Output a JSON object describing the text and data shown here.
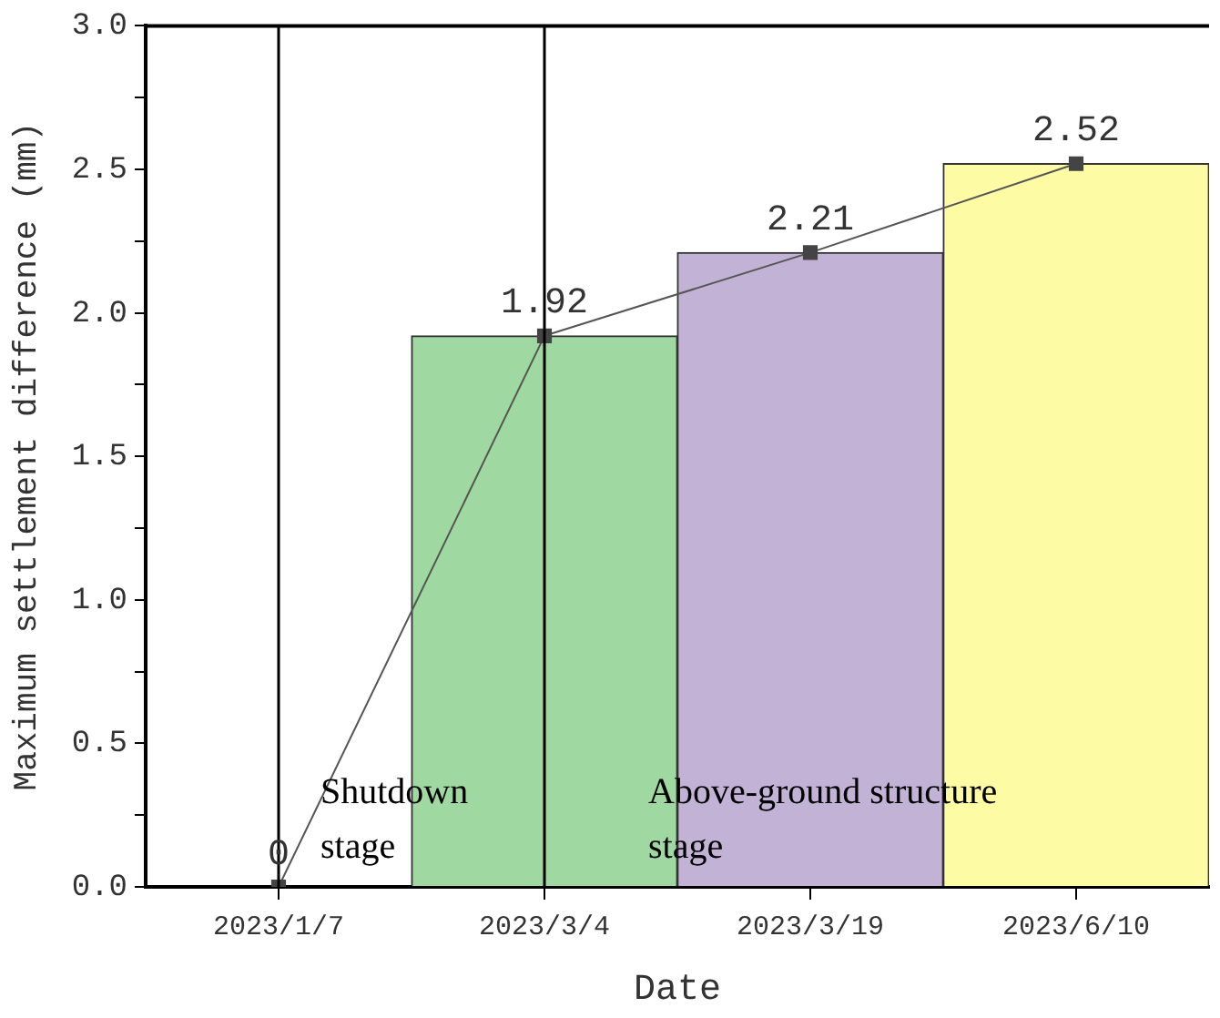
{
  "chart_data": {
    "type": "bar",
    "xlabel": "Date",
    "ylabel": "Maximum settlement difference (mm)",
    "categories": [
      "2023/1/7",
      "2023/3/4",
      "2023/3/19",
      "2023/6/10"
    ],
    "series": [
      {
        "type": "bar",
        "colors": [
          "#9fd8a0",
          "#9fd8a0",
          "#c2b2d6",
          "#fdfca5"
        ],
        "values": [
          0,
          1.92,
          2.21,
          2.52
        ]
      },
      {
        "type": "line",
        "color": "#555555",
        "marker": "square",
        "values": [
          0,
          1.92,
          2.21,
          2.52
        ],
        "value_labels": [
          "0",
          "1.92",
          "2.21",
          "2.52"
        ]
      }
    ],
    "ylim": [
      0,
      3
    ],
    "yticks": [
      {
        "value": 0,
        "label": "0.0"
      },
      {
        "value": 0.25,
        "label": null
      },
      {
        "value": 0.5,
        "label": "0.5"
      },
      {
        "value": 0.75,
        "label": null
      },
      {
        "value": 1,
        "label": "1.0"
      },
      {
        "value": 1.25,
        "label": null
      },
      {
        "value": 1.5,
        "label": "1.5"
      },
      {
        "value": 1.75,
        "label": null
      },
      {
        "value": 2,
        "label": "2.0"
      },
      {
        "value": 2.25,
        "label": null
      },
      {
        "value": 2.5,
        "label": "2.5"
      },
      {
        "value": 2.75,
        "label": null
      },
      {
        "value": 3,
        "label": "3.0"
      }
    ],
    "grid": false,
    "legend": false,
    "ref_lines": [
      {
        "axis": "x",
        "value": "2023/1/7",
        "color": "#000000"
      },
      {
        "axis": "x",
        "value": "2023/3/4",
        "color": "#000000"
      }
    ],
    "annotations": [
      "Shutdown\nstage",
      "Above-ground structure\nstage"
    ]
  }
}
